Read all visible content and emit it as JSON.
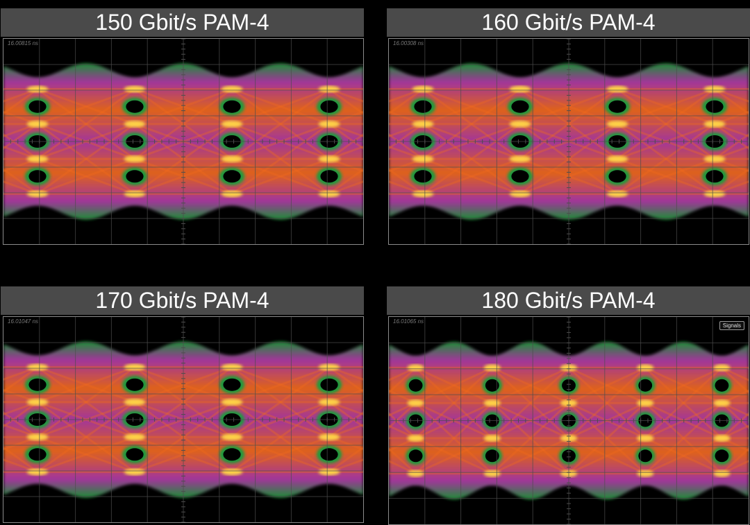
{
  "panels": [
    {
      "title": "150 Gbit/s PAM-4",
      "timestamp": "16.00815 ns",
      "eyes_visible": 4,
      "levels": 4
    },
    {
      "title": "160 Gbit/s PAM-4",
      "timestamp": "16.00308 ns",
      "eyes_visible": 4,
      "levels": 4
    },
    {
      "title": "170 Gbit/s PAM-4",
      "timestamp": "16.01047 ns",
      "eyes_visible": 4,
      "levels": 4
    },
    {
      "title": "180 Gbit/s PAM-4",
      "timestamp": "16.01065 ns",
      "eyes_visible": 5,
      "levels": 4,
      "signals_button": "Signals"
    }
  ],
  "colors": {
    "background": "#000000",
    "title_bar": "#4a4a4a",
    "title_text": "#ffffff",
    "grid": "#4d4d4d",
    "trace_low": "#1f9a3c",
    "trace_mid": "#b03aa8",
    "trace_high": "#f26b1d",
    "trace_peak": "#ffd84a"
  }
}
